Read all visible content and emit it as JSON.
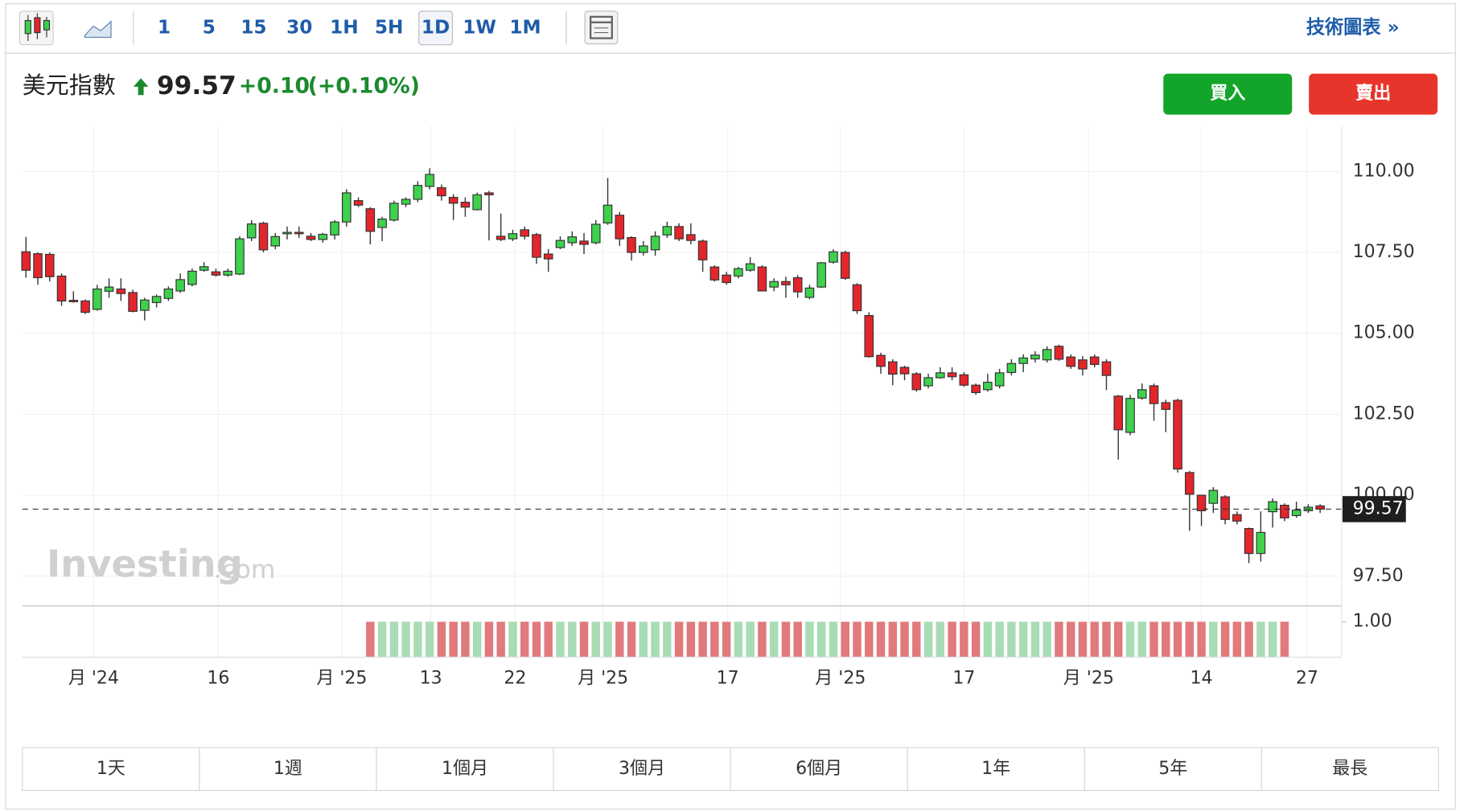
{
  "toolbar": {
    "intervals": [
      "1",
      "5",
      "15",
      "30",
      "1H",
      "5H",
      "1D",
      "1W",
      "1M"
    ],
    "link": "技術圖表 »"
  },
  "header": {
    "name": "美元指數",
    "change": "+0.10",
    "change_pct": "(+0.10%)"
  },
  "buttons": {
    "buy": "買入",
    "sell": "賣出"
  },
  "watermark": {
    "brand": "Investing",
    "suffix": ".com"
  },
  "range_tabs": [
    "1天",
    "1週",
    "1個月",
    "3個月",
    "6個月",
    "1年",
    "5年",
    "最長"
  ],
  "chart_data": {
    "type": "candlestick",
    "last_value": 99.57,
    "up_color": "#3ed14c",
    "down_color": "#e3262b",
    "vol_up_color": "#a8dcb5",
    "vol_down_color": "#e07a7c",
    "xlim": [
      -0.3,
      110.8
    ],
    "ylim": [
      96.58,
      111.41
    ],
    "vol_ylim": [
      0,
      1.42
    ],
    "yticks": [
      {
        "value": 97.5,
        "label": "97.50"
      },
      {
        "value": 100,
        "label": "100.00"
      },
      {
        "value": 102.5,
        "label": "102.50"
      },
      {
        "value": 105,
        "label": "105.00"
      },
      {
        "value": 107.5,
        "label": "107.50"
      },
      {
        "value": 110,
        "label": "110.00"
      }
    ],
    "vol_yticks": [
      {
        "value": 1,
        "label": "1.00"
      }
    ],
    "xticks": [
      {
        "value": 5.7,
        "label": "月 '24"
      },
      {
        "value": 16.2,
        "label": "16"
      },
      {
        "value": 26.6,
        "label": "月 '25"
      },
      {
        "value": 34.1,
        "label": "13"
      },
      {
        "value": 41.2,
        "label": "22"
      },
      {
        "value": 48.6,
        "label": "月 '25"
      },
      {
        "value": 59.1,
        "label": "17"
      },
      {
        "value": 68.6,
        "label": "月 '25"
      },
      {
        "value": 79,
        "label": "17"
      },
      {
        "value": 89.5,
        "label": "月 '25"
      },
      {
        "value": 99,
        "label": "14"
      },
      {
        "value": 107.9,
        "label": "27"
      }
    ],
    "open": [
      107.52,
      107.46,
      107.44,
      106.77,
      106.02,
      106.0,
      105.74,
      106.3,
      106.37,
      106.26,
      105.71,
      105.95,
      106.08,
      106.31,
      106.51,
      106.95,
      106.9,
      106.8,
      106.83,
      107.95,
      108.4,
      107.7,
      108.1,
      108.12,
      108.0,
      107.9,
      108.04,
      108.44,
      109.1,
      108.85,
      108.27,
      108.5,
      108.99,
      109.14,
      109.54,
      109.5,
      109.2,
      109.05,
      108.82,
      109.34,
      108.0,
      107.92,
      108.2,
      108.05,
      107.45,
      107.65,
      107.8,
      107.85,
      107.8,
      108.41,
      108.65,
      107.96,
      107.5,
      107.58,
      108.04,
      108.3,
      108.05,
      107.85,
      107.05,
      106.8,
      106.77,
      106.95,
      107.05,
      106.43,
      106.6,
      106.72,
      106.11,
      106.43,
      107.2,
      107.5,
      106.5,
      105.55,
      104.32,
      104.12,
      103.95,
      103.75,
      103.38,
      103.63,
      103.78,
      103.72,
      103.4,
      103.26,
      103.38,
      103.79,
      104.07,
      104.21,
      104.18,
      104.6,
      104.27,
      104.18,
      104.27,
      104.12,
      103.06,
      101.94,
      103.0,
      103.38,
      102.86,
      102.93,
      100.7,
      100.0,
      99.75,
      99.95,
      99.4,
      98.97,
      98.2,
      99.49,
      99.69,
      99.37,
      99.52,
      99.67
    ],
    "high": [
      107.98,
      107.5,
      107.5,
      106.85,
      106.3,
      106.05,
      106.5,
      106.7,
      106.7,
      106.35,
      106.1,
      106.2,
      106.45,
      106.85,
      107.0,
      107.2,
      107.0,
      107.0,
      108.0,
      108.5,
      108.45,
      108.1,
      108.3,
      108.3,
      108.1,
      108.1,
      108.5,
      109.45,
      109.2,
      108.9,
      108.6,
      109.1,
      109.2,
      109.7,
      110.1,
      109.6,
      109.3,
      109.2,
      109.35,
      109.4,
      108.7,
      108.2,
      108.3,
      108.1,
      107.6,
      108.0,
      108.15,
      108.1,
      108.5,
      109.8,
      108.75,
      108.0,
      107.85,
      108.15,
      108.45,
      108.4,
      108.4,
      107.9,
      107.1,
      106.9,
      107.05,
      107.35,
      107.1,
      106.7,
      106.75,
      106.8,
      106.5,
      107.2,
      107.6,
      107.55,
      106.55,
      105.65,
      104.4,
      104.2,
      104.0,
      103.8,
      103.75,
      103.95,
      103.95,
      103.8,
      103.45,
      103.75,
      103.9,
      104.2,
      104.35,
      104.45,
      104.6,
      104.65,
      104.35,
      104.3,
      104.35,
      104.2,
      103.1,
      103.1,
      103.45,
      103.45,
      102.95,
      102.98,
      100.75,
      100.0,
      100.25,
      100.0,
      99.5,
      99.0,
      99.5,
      99.9,
      99.75,
      99.8,
      99.72,
      99.72
    ],
    "low": [
      106.72,
      106.5,
      106.6,
      105.85,
      105.95,
      105.6,
      105.7,
      106.1,
      106.0,
      105.65,
      105.4,
      105.8,
      106.0,
      106.25,
      106.45,
      106.9,
      106.75,
      106.75,
      106.8,
      107.85,
      107.5,
      107.6,
      107.9,
      107.95,
      107.85,
      107.8,
      107.9,
      108.3,
      108.9,
      107.75,
      107.85,
      108.45,
      108.9,
      109.05,
      109.45,
      109.1,
      108.5,
      108.6,
      108.8,
      107.87,
      107.85,
      107.85,
      107.9,
      107.15,
      106.9,
      107.6,
      107.7,
      107.45,
      107.75,
      108.35,
      107.7,
      107.25,
      107.4,
      107.4,
      107.95,
      107.85,
      107.75,
      106.9,
      106.6,
      106.5,
      106.7,
      106.9,
      106.3,
      106.3,
      106.1,
      106.1,
      106.05,
      106.4,
      107.15,
      106.65,
      105.6,
      104.25,
      103.75,
      103.4,
      103.55,
      103.2,
      103.3,
      103.6,
      103.55,
      103.35,
      103.1,
      103.2,
      103.3,
      103.7,
      103.8,
      104.1,
      104.1,
      104.15,
      103.9,
      103.7,
      103.95,
      103.25,
      101.1,
      101.85,
      102.95,
      102.3,
      101.95,
      100.7,
      98.9,
      99.05,
      99.45,
      99.1,
      99.1,
      97.9,
      97.95,
      99.0,
      99.2,
      99.3,
      99.45,
      99.45
    ],
    "close": [
      106.95,
      106.72,
      106.75,
      106.0,
      106.0,
      105.65,
      106.37,
      106.43,
      106.23,
      105.68,
      106.03,
      106.14,
      106.37,
      106.66,
      106.92,
      107.06,
      106.8,
      106.92,
      107.92,
      108.38,
      107.58,
      107.99,
      108.12,
      108.1,
      107.9,
      108.06,
      108.44,
      109.34,
      108.96,
      108.15,
      108.53,
      109.02,
      109.14,
      109.57,
      109.91,
      109.25,
      109.02,
      108.9,
      109.28,
      109.28,
      107.9,
      108.08,
      108.0,
      107.35,
      107.3,
      107.87,
      107.98,
      107.75,
      108.37,
      108.96,
      107.92,
      107.5,
      107.7,
      108.0,
      108.3,
      107.92,
      107.87,
      107.27,
      106.65,
      106.57,
      107.0,
      107.15,
      106.31,
      106.6,
      106.5,
      106.28,
      106.4,
      107.18,
      107.52,
      106.7,
      105.7,
      104.28,
      103.98,
      103.74,
      103.75,
      103.26,
      103.63,
      103.78,
      103.66,
      103.4,
      103.17,
      103.49,
      103.78,
      104.07,
      104.24,
      104.33,
      104.5,
      104.2,
      103.98,
      103.9,
      104.04,
      103.7,
      102.02,
      102.99,
      103.26,
      102.83,
      102.65,
      100.81,
      100.03,
      99.52,
      100.15,
      99.25,
      99.2,
      98.2,
      98.85,
      99.8,
      99.3,
      99.54,
      99.63,
      99.57
    ],
    "volume": [
      null,
      null,
      null,
      null,
      null,
      null,
      null,
      null,
      null,
      null,
      null,
      null,
      null,
      null,
      null,
      null,
      null,
      null,
      null,
      null,
      null,
      null,
      null,
      null,
      null,
      null,
      null,
      null,
      null,
      1,
      1,
      1,
      1,
      1,
      1,
      1,
      1,
      1,
      1,
      1,
      1,
      1,
      1,
      1,
      1,
      1,
      1,
      1,
      1,
      1,
      1,
      1,
      1,
      1,
      1,
      1,
      1,
      1,
      1,
      1,
      1,
      1,
      1,
      1,
      1,
      1,
      1,
      1,
      1,
      1,
      1,
      1,
      1,
      1,
      1,
      1,
      1,
      1,
      1,
      1,
      1,
      1,
      1,
      1,
      1,
      1,
      1,
      1,
      1,
      1,
      1,
      1,
      1,
      1,
      1,
      1,
      1,
      1,
      1,
      1,
      1,
      1,
      1,
      1,
      1,
      1,
      1,
      null,
      null,
      null
    ]
  }
}
